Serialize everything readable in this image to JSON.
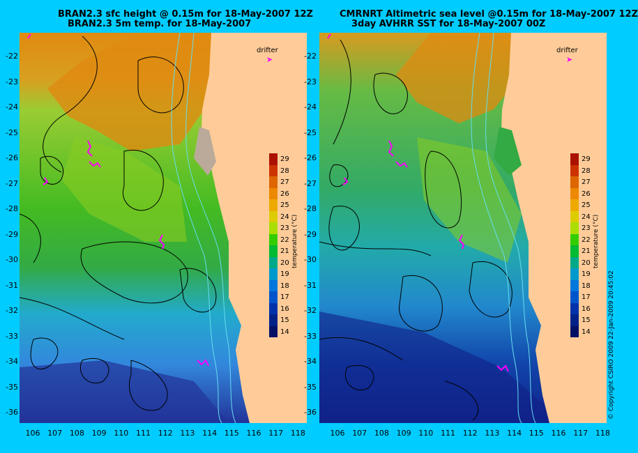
{
  "left_panel": {
    "title_line1": "BRAN2.3 sfc height @ 0.15m for 18-May-2007 12Z",
    "title_line2": "BRAN2.3 5m temp. for 18-May-2007"
  },
  "right_panel": {
    "title_line1": "CMRNRT Altimetric sea level  @0.15m  for 18-May-2007 12Z",
    "title_line2": "3day AVHRR SST for 18-May-2007 00Z"
  },
  "y_ticks": [
    "-22",
    "-23",
    "-24",
    "-25",
    "-26",
    "-27",
    "-28",
    "-29",
    "-30",
    "-31",
    "-32",
    "-33",
    "-34",
    "-35",
    "-36"
  ],
  "x_ticks": [
    "106",
    "107",
    "108",
    "109",
    "110",
    "111",
    "112",
    "113",
    "114",
    "115",
    "116",
    "117",
    "118"
  ],
  "colorbar": {
    "labels": [
      "29",
      "28",
      "27",
      "26",
      "25",
      "24",
      "23",
      "22",
      "21",
      "20",
      "19",
      "18",
      "17",
      "16",
      "15",
      "14"
    ],
    "title": "temperature (°C)"
  },
  "drifter_label": "drifter",
  "copyright": "© Copyright CSIRO 2009    22-Jan-2009 20:45:02",
  "colors": {
    "background": "#00ccff",
    "land": "#ffcc99",
    "drifter": "#ff00ff",
    "contour": "#000000",
    "isobath": "#66ddee"
  }
}
